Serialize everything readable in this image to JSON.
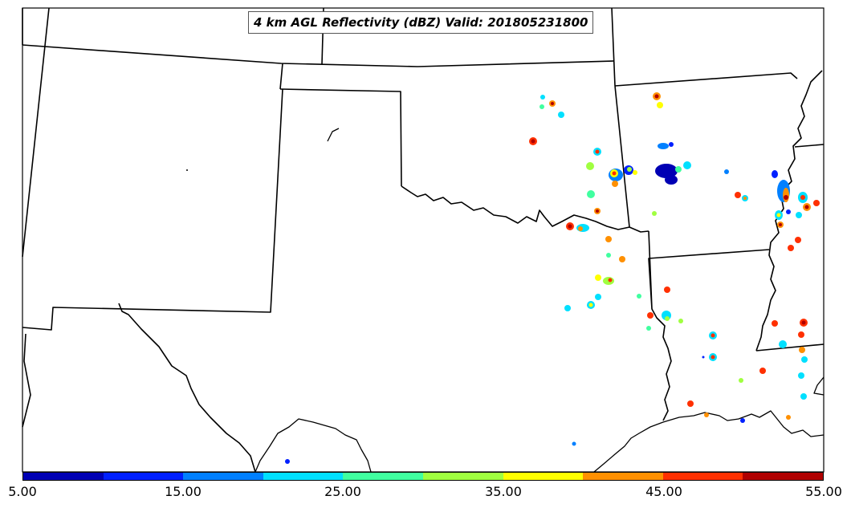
{
  "title": "4 km AGL Reflectivity (dBZ) Valid: 201805231800",
  "colorbar": {
    "colors": [
      "#0000b4",
      "#0020ff",
      "#0080ff",
      "#00e0ff",
      "#40ffa0",
      "#a0ff40",
      "#ffff00",
      "#ff9000",
      "#ff3000",
      "#b00000"
    ],
    "tick_labels": [
      "5.00",
      "15.00",
      "25.00",
      "35.00",
      "45.00",
      "55.00"
    ]
  }
}
